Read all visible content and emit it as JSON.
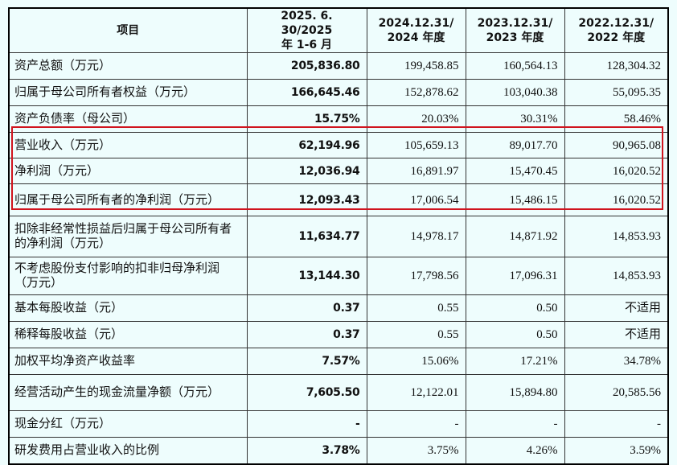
{
  "headers": [
    "项目",
    "2025.6.30/2025\n年1-6月",
    "2024.12.31/\n2024年度",
    "2023.12.31/\n2023年度",
    "2022.12.31/\n2022年度"
  ],
  "header_lines": [
    [
      "项目"
    ],
    [
      "2025. 6. 30/2025",
      "年 1-6 月"
    ],
    [
      "2024.12.31/",
      "2024 年度"
    ],
    [
      "2023.12.31/",
      "2023 年度"
    ],
    [
      "2022.12.31/",
      "2022 年度"
    ]
  ],
  "rows": [
    {
      "label": "资产总额（万元）",
      "values": [
        "205,836.80",
        "199,458.85",
        "160,564.13",
        "128,304.32"
      ]
    },
    {
      "label": "归属于母公司所有者权益（万元）",
      "values": [
        "166,645.46",
        "152,878.62",
        "103,040.38",
        "55,095.35"
      ]
    },
    {
      "label": "资产负债率（母公司）",
      "values": [
        "15.75%",
        "20.03%",
        "30.31%",
        "58.46%"
      ]
    },
    {
      "label": "营业收入（万元）",
      "values": [
        "62,194.96",
        "105,659.13",
        "89,017.70",
        "90,965.08"
      ]
    },
    {
      "label": "净利润（万元）",
      "values": [
        "12,036.94",
        "16,891.97",
        "15,470.45",
        "16,020.52"
      ]
    },
    {
      "label": "归属于母公司所有者的净利润（万元）",
      "values": [
        "12,093.43",
        "17,006.54",
        "15,486.15",
        "16,020.52"
      ]
    },
    {
      "label": "扣除非经常性损益后归属于母公司所有者的净利润（万元）",
      "values": [
        "11,634.77",
        "14,978.17",
        "14,871.92",
        "14,853.93"
      ]
    },
    {
      "label": "不考虑股份支付影响的扣非归母净利润（万元）",
      "values": [
        "13,144.30",
        "17,798.56",
        "17,096.31",
        "14,853.93"
      ]
    },
    {
      "label": "基本每股收益（元）",
      "values": [
        "0.37",
        "0.55",
        "0.50",
        "不适用"
      ]
    },
    {
      "label": "稀释每股收益（元）",
      "values": [
        "0.37",
        "0.55",
        "0.50",
        "不适用"
      ]
    },
    {
      "label": "加权平均净资产收益率",
      "values": [
        "7.57%",
        "15.06%",
        "17.21%",
        "34.78%"
      ]
    },
    {
      "label": "经营活动产生的现金流量净额（万元）",
      "values": [
        "7,605.50",
        "12,122.01",
        "15,894.80",
        "20,585.56"
      ]
    },
    {
      "label": "现金分红（万元）",
      "values": [
        "-",
        "-",
        "-",
        "-"
      ]
    },
    {
      "label": "研发费用占营业收入的比例",
      "values": [
        "3.78%",
        "3.75%",
        "4.26%",
        "3.59%"
      ]
    }
  ],
  "highlight_color": "#d0141e"
}
